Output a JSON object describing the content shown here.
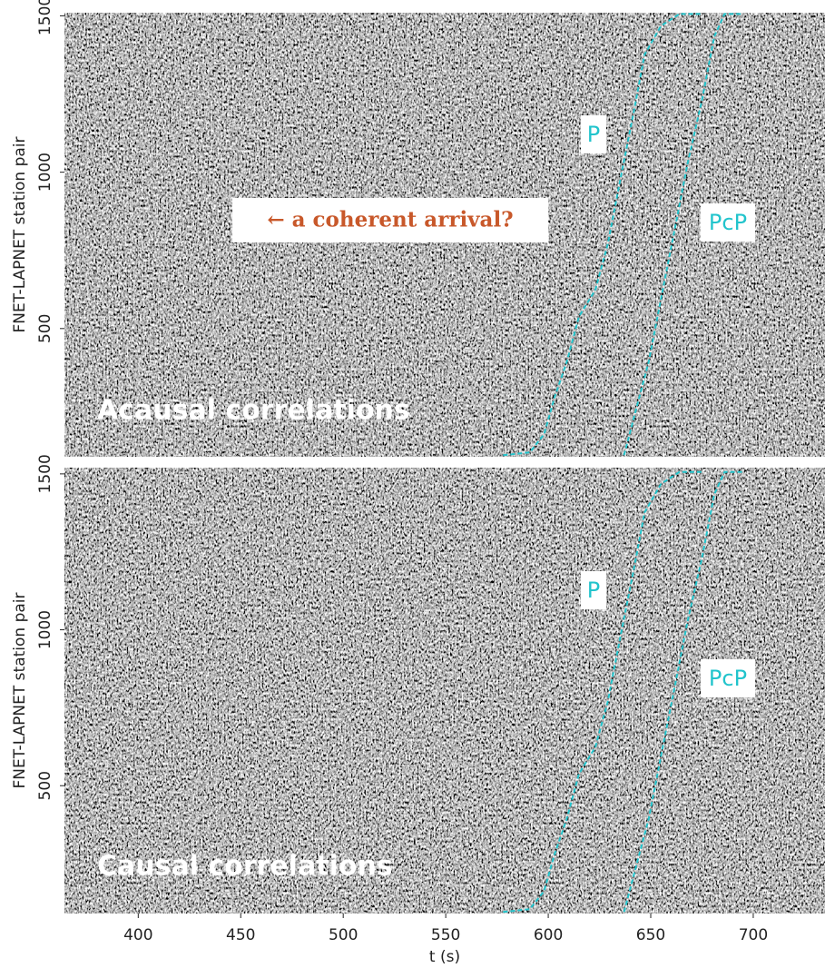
{
  "chart_data": [
    {
      "type": "line",
      "annotation": "← a coherent arrival?",
      "panel_label": "Acausal correlations",
      "ylabel": "FNET-LAPNET station pair",
      "xlim": [
        364,
        735
      ],
      "ylim": [
        90,
        1510
      ],
      "yticks": [
        500,
        1000,
        1500
      ],
      "series": [
        {
          "name": "P",
          "color": "#22c4cc",
          "x": [
            578,
            591,
            598,
            603,
            609,
            615,
            623,
            629,
            635,
            642,
            647,
            655,
            664,
            675
          ],
          "values": [
            95,
            104,
            162,
            278,
            393,
            538,
            624,
            769,
            971,
            1202,
            1376,
            1468,
            1506,
            1506
          ]
        },
        {
          "name": "PcP",
          "color": "#22c4cc",
          "x": [
            637,
            642,
            649,
            655,
            662,
            668,
            675,
            681,
            686,
            695
          ],
          "values": [
            95,
            220,
            393,
            595,
            827,
            1029,
            1231,
            1434,
            1506,
            1506
          ]
        }
      ]
    },
    {
      "type": "line",
      "panel_label": "Causal correlations",
      "ylabel": "FNET-LAPNET station pair",
      "xlabel": "t (s)",
      "xlim": [
        364,
        735
      ],
      "ylim": [
        90,
        1520
      ],
      "xticks": [
        400,
        450,
        500,
        550,
        600,
        650,
        700
      ],
      "yticks": [
        500,
        1000,
        1500
      ],
      "series": [
        {
          "name": "P",
          "color": "#22c4cc",
          "x": [
            578,
            591,
            598,
            603,
            609,
            615,
            623,
            629,
            635,
            642,
            647,
            655,
            664,
            675
          ],
          "values": [
            95,
            104,
            162,
            278,
            393,
            538,
            624,
            769,
            971,
            1202,
            1376,
            1468,
            1506,
            1506
          ]
        },
        {
          "name": "PcP",
          "color": "#22c4cc",
          "x": [
            637,
            642,
            649,
            655,
            662,
            668,
            675,
            681,
            686,
            695
          ],
          "values": [
            95,
            220,
            393,
            595,
            827,
            1029,
            1231,
            1434,
            1506,
            1506
          ]
        }
      ]
    }
  ]
}
